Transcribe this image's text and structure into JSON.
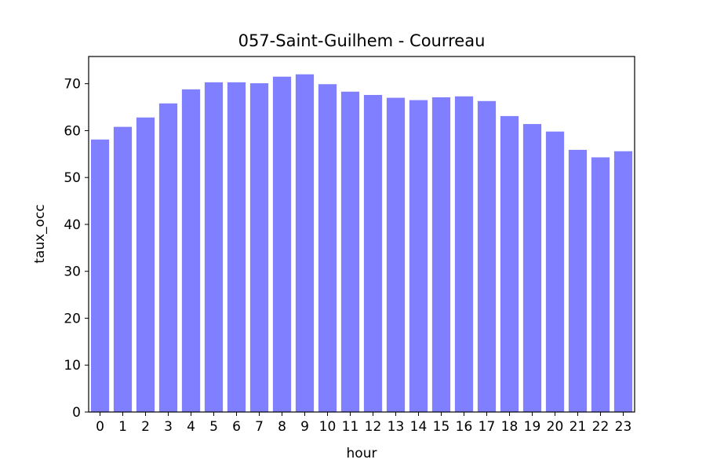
{
  "chart_data": {
    "type": "bar",
    "title": "057-Saint-Guilhem - Courreau",
    "xlabel": "hour",
    "ylabel": "taux_occ",
    "categories": [
      "0",
      "1",
      "2",
      "3",
      "4",
      "5",
      "6",
      "7",
      "8",
      "9",
      "10",
      "11",
      "12",
      "13",
      "14",
      "15",
      "16",
      "17",
      "18",
      "19",
      "20",
      "21",
      "22",
      "23"
    ],
    "values": [
      58.1,
      60.8,
      62.8,
      65.8,
      68.8,
      70.3,
      70.3,
      70.1,
      71.5,
      72.0,
      69.9,
      68.3,
      67.6,
      67.0,
      66.5,
      67.1,
      67.3,
      66.3,
      63.1,
      61.4,
      59.8,
      55.9,
      54.3,
      55.6
    ],
    "ylim": [
      0,
      75.8
    ],
    "yticks": [
      0,
      10,
      20,
      30,
      40,
      50,
      60,
      70
    ],
    "bar_color": "#7f7fff",
    "grid": false,
    "legend": "none"
  }
}
